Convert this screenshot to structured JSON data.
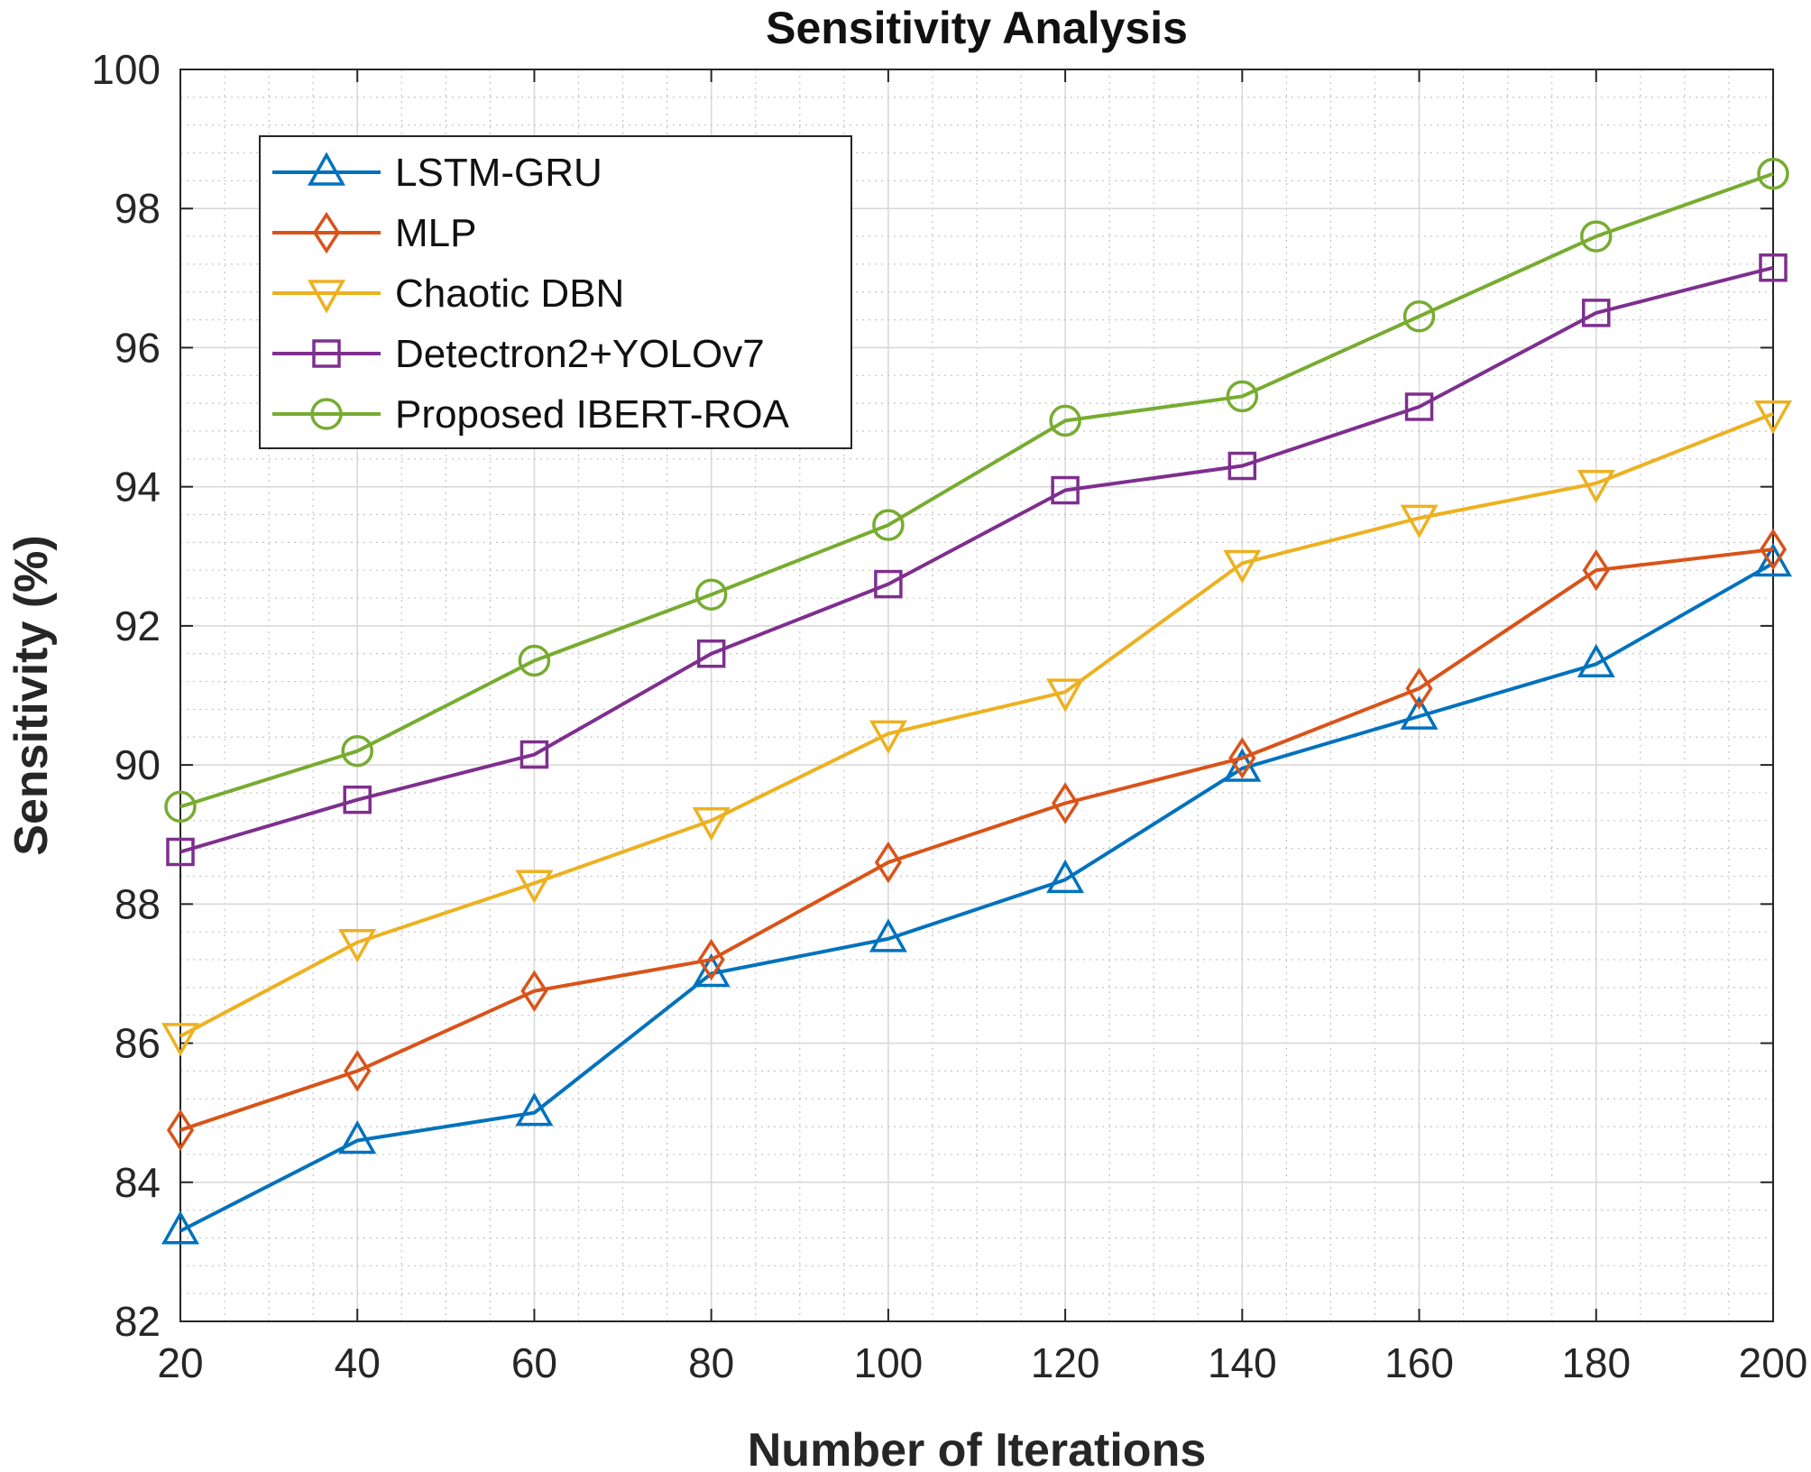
{
  "chart_data": {
    "type": "line",
    "title": "Sensitivity Analysis",
    "xlabel": "Number of Iterations",
    "ylabel": "Sensitivity (%)",
    "x": [
      20,
      40,
      60,
      80,
      100,
      120,
      140,
      160,
      180,
      200
    ],
    "xlim": [
      20,
      200
    ],
    "ylim": [
      82,
      100
    ],
    "xticks": [
      "20",
      "40",
      "60",
      "80",
      "100",
      "120",
      "140",
      "160",
      "180",
      "200"
    ],
    "yticks": [
      "82",
      "84",
      "86",
      "88",
      "90",
      "92",
      "94",
      "96",
      "98",
      "100"
    ],
    "grid": true,
    "minor_grid": true,
    "legend_position": "top-left",
    "series": [
      {
        "name": "LSTM-GRU",
        "color": "#0072BD",
        "marker": "triangle-up",
        "values": [
          83.3,
          84.6,
          85.0,
          87.0,
          87.5,
          88.35,
          89.95,
          90.7,
          91.45,
          92.9
        ]
      },
      {
        "name": "MLP",
        "color": "#D95319",
        "marker": "diamond",
        "values": [
          84.75,
          85.6,
          86.75,
          87.2,
          88.6,
          89.45,
          90.1,
          91.1,
          92.8,
          93.1
        ]
      },
      {
        "name": "Chaotic DBN",
        "color": "#EDB120",
        "marker": "triangle-down",
        "values": [
          86.1,
          87.45,
          88.3,
          89.2,
          90.45,
          91.05,
          92.9,
          93.55,
          94.05,
          95.05
        ]
      },
      {
        "name": "Detectron2+YOLOv7",
        "color": "#7E2F8E",
        "marker": "square",
        "values": [
          88.75,
          89.5,
          90.15,
          91.6,
          92.6,
          93.95,
          94.3,
          95.15,
          96.5,
          97.15
        ]
      },
      {
        "name": "Proposed IBERT-ROA",
        "color": "#77AC30",
        "marker": "circle",
        "values": [
          89.4,
          90.2,
          91.5,
          92.45,
          93.45,
          94.95,
          95.3,
          96.45,
          97.6,
          98.5
        ]
      }
    ]
  }
}
